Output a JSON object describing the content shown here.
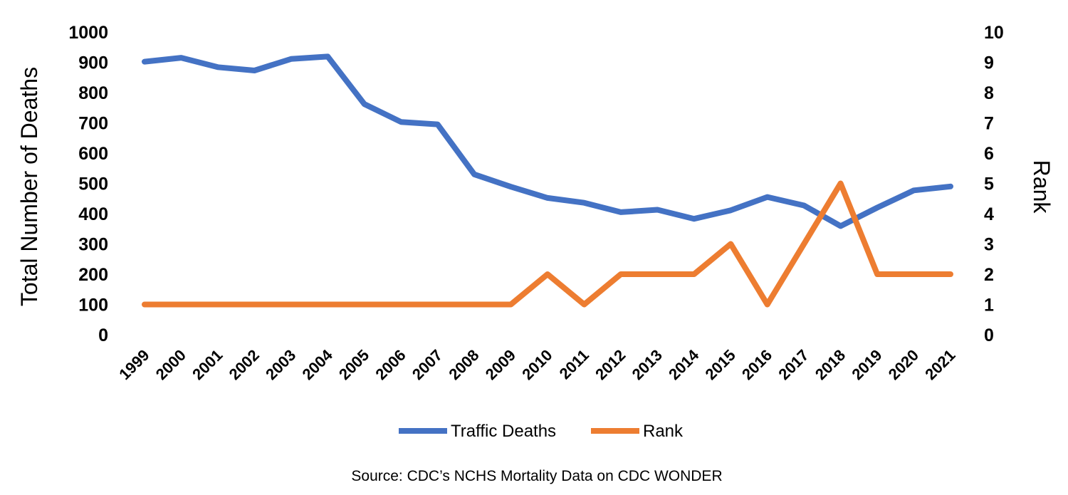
{
  "chart_data": {
    "type": "line",
    "x": [
      "1999",
      "2000",
      "2001",
      "2002",
      "2003",
      "2004",
      "2005",
      "2006",
      "2007",
      "2008",
      "2009",
      "2010",
      "2011",
      "2012",
      "2013",
      "2014",
      "2015",
      "2016",
      "2017",
      "2018",
      "2019",
      "2020",
      "2021"
    ],
    "series": [
      {
        "name": "Traffic Deaths",
        "axis": "left",
        "color": "#4472C4",
        "values": [
          902,
          915,
          884,
          873,
          911,
          919,
          762,
          703,
          695,
          530,
          489,
          452,
          436,
          405,
          413,
          383,
          411,
          455,
          427,
          359,
          420,
          477,
          490
        ]
      },
      {
        "name": "Rank",
        "axis": "right",
        "color": "#ED7D31",
        "values": [
          1,
          1,
          1,
          1,
          1,
          1,
          1,
          1,
          1,
          1,
          1,
          2,
          1,
          2,
          2,
          2,
          3,
          1,
          3,
          5,
          2,
          2,
          2
        ]
      }
    ],
    "ylabel": "Total Number of Deaths",
    "y2label": "Rank",
    "ylim": [
      0,
      1000
    ],
    "y2lim": [
      0,
      10
    ],
    "yticks": [
      "0",
      "100",
      "200",
      "300",
      "400",
      "500",
      "600",
      "700",
      "800",
      "900",
      "1000"
    ],
    "y2ticks": [
      "0",
      "1",
      "2",
      "3",
      "4",
      "5",
      "6",
      "7",
      "8",
      "9",
      "10"
    ],
    "grid": false,
    "legend": "bottom"
  },
  "source": "Source: CDC’s NCHS Mortality Data on CDC WONDER"
}
